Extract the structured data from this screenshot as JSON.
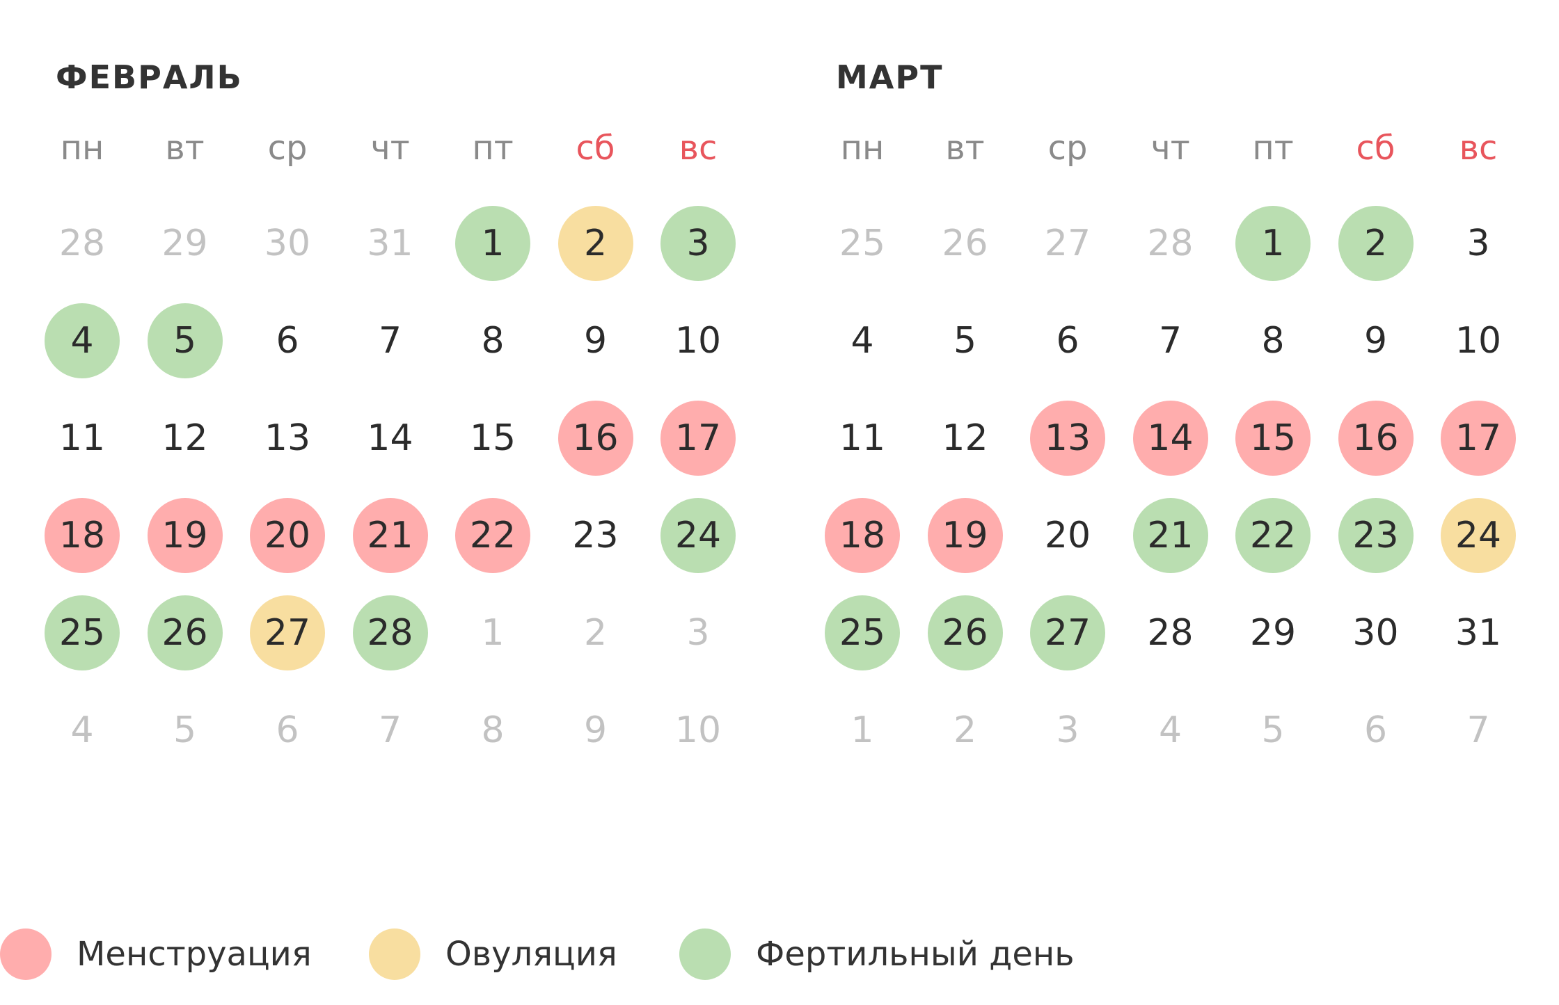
{
  "weekdays": [
    {
      "label": "пн",
      "weekend": false
    },
    {
      "label": "вт",
      "weekend": false
    },
    {
      "label": "ср",
      "weekend": false
    },
    {
      "label": "чт",
      "weekend": false
    },
    {
      "label": "пт",
      "weekend": false
    },
    {
      "label": "сб",
      "weekend": true
    },
    {
      "label": "вс",
      "weekend": true
    }
  ],
  "months": [
    {
      "title": "ФЕВРАЛЬ",
      "weeks": [
        [
          {
            "d": "28",
            "t": "outside"
          },
          {
            "d": "29",
            "t": "outside"
          },
          {
            "d": "30",
            "t": "outside"
          },
          {
            "d": "31",
            "t": "outside"
          },
          {
            "d": "1",
            "t": "fer"
          },
          {
            "d": "2",
            "t": "ovu"
          },
          {
            "d": "3",
            "t": "fer"
          }
        ],
        [
          {
            "d": "4",
            "t": "fer"
          },
          {
            "d": "5",
            "t": "fer"
          },
          {
            "d": "6",
            "t": ""
          },
          {
            "d": "7",
            "t": ""
          },
          {
            "d": "8",
            "t": ""
          },
          {
            "d": "9",
            "t": ""
          },
          {
            "d": "10",
            "t": ""
          }
        ],
        [
          {
            "d": "11",
            "t": ""
          },
          {
            "d": "12",
            "t": ""
          },
          {
            "d": "13",
            "t": ""
          },
          {
            "d": "14",
            "t": ""
          },
          {
            "d": "15",
            "t": ""
          },
          {
            "d": "16",
            "t": "men"
          },
          {
            "d": "17",
            "t": "men"
          }
        ],
        [
          {
            "d": "18",
            "t": "men"
          },
          {
            "d": "19",
            "t": "men"
          },
          {
            "d": "20",
            "t": "men"
          },
          {
            "d": "21",
            "t": "men"
          },
          {
            "d": "22",
            "t": "men"
          },
          {
            "d": "23",
            "t": ""
          },
          {
            "d": "24",
            "t": "fer"
          }
        ],
        [
          {
            "d": "25",
            "t": "fer"
          },
          {
            "d": "26",
            "t": "fer"
          },
          {
            "d": "27",
            "t": "ovu"
          },
          {
            "d": "28",
            "t": "fer"
          },
          {
            "d": "1",
            "t": "outside"
          },
          {
            "d": "2",
            "t": "outside"
          },
          {
            "d": "3",
            "t": "outside"
          }
        ],
        [
          {
            "d": "4",
            "t": "outside"
          },
          {
            "d": "5",
            "t": "outside"
          },
          {
            "d": "6",
            "t": "outside"
          },
          {
            "d": "7",
            "t": "outside"
          },
          {
            "d": "8",
            "t": "outside"
          },
          {
            "d": "9",
            "t": "outside"
          },
          {
            "d": "10",
            "t": "outside"
          }
        ]
      ]
    },
    {
      "title": "МАРТ",
      "weeks": [
        [
          {
            "d": "25",
            "t": "outside"
          },
          {
            "d": "26",
            "t": "outside"
          },
          {
            "d": "27",
            "t": "outside"
          },
          {
            "d": "28",
            "t": "outside"
          },
          {
            "d": "1",
            "t": "fer"
          },
          {
            "d": "2",
            "t": "fer"
          },
          {
            "d": "3",
            "t": ""
          }
        ],
        [
          {
            "d": "4",
            "t": ""
          },
          {
            "d": "5",
            "t": ""
          },
          {
            "d": "6",
            "t": ""
          },
          {
            "d": "7",
            "t": ""
          },
          {
            "d": "8",
            "t": ""
          },
          {
            "d": "9",
            "t": ""
          },
          {
            "d": "10",
            "t": ""
          }
        ],
        [
          {
            "d": "11",
            "t": ""
          },
          {
            "d": "12",
            "t": ""
          },
          {
            "d": "13",
            "t": "men"
          },
          {
            "d": "14",
            "t": "men"
          },
          {
            "d": "15",
            "t": "men"
          },
          {
            "d": "16",
            "t": "men"
          },
          {
            "d": "17",
            "t": "men"
          }
        ],
        [
          {
            "d": "18",
            "t": "men"
          },
          {
            "d": "19",
            "t": "men"
          },
          {
            "d": "20",
            "t": ""
          },
          {
            "d": "21",
            "t": "fer"
          },
          {
            "d": "22",
            "t": "fer"
          },
          {
            "d": "23",
            "t": "fer"
          },
          {
            "d": "24",
            "t": "ovu"
          }
        ],
        [
          {
            "d": "25",
            "t": "fer"
          },
          {
            "d": "26",
            "t": "fer"
          },
          {
            "d": "27",
            "t": "fer"
          },
          {
            "d": "28",
            "t": ""
          },
          {
            "d": "29",
            "t": ""
          },
          {
            "d": "30",
            "t": ""
          },
          {
            "d": "31",
            "t": ""
          }
        ],
        [
          {
            "d": "1",
            "t": "outside"
          },
          {
            "d": "2",
            "t": "outside"
          },
          {
            "d": "3",
            "t": "outside"
          },
          {
            "d": "4",
            "t": "outside"
          },
          {
            "d": "5",
            "t": "outside"
          },
          {
            "d": "6",
            "t": "outside"
          },
          {
            "d": "7",
            "t": "outside"
          }
        ]
      ]
    }
  ],
  "legend": [
    {
      "label": "Менструация",
      "color": "#ffadad",
      "type": "men"
    },
    {
      "label": "Овуляция",
      "color": "#f8dea0",
      "type": "ovu"
    },
    {
      "label": "Фертильный день",
      "color": "#badeb1",
      "type": "fer"
    }
  ],
  "colors": {
    "menstruation": "#ffadad",
    "ovulation": "#f8dea0",
    "fertile": "#badeb1",
    "weekend_label": "#e8555c",
    "outside_day": "#c2c2c2"
  }
}
